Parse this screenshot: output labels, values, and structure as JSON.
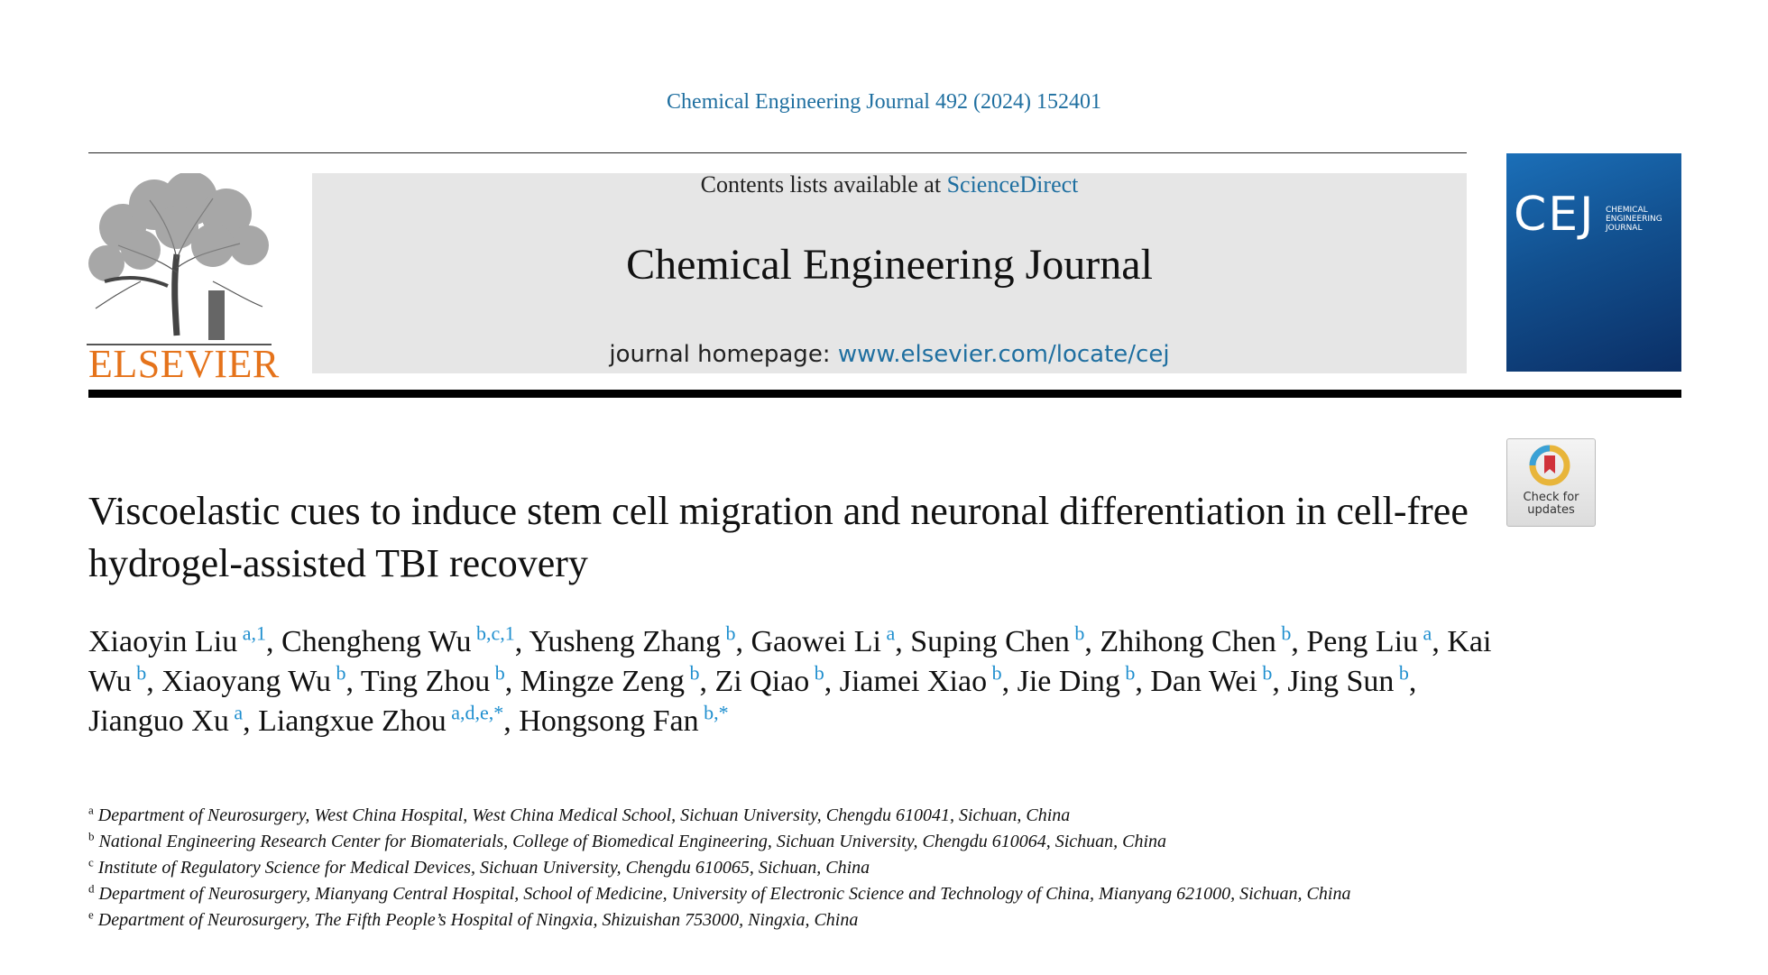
{
  "header": {
    "citation": "Chemical Engineering Journal 492 (2024) 152401",
    "contents_prefix": "Contents lists available at ",
    "contents_link": "ScienceDirect",
    "journal_title": "Chemical Engineering Journal",
    "homepage_prefix": "journal homepage: ",
    "homepage_link": "www.elsevier.com/locate/cej",
    "publisher": "ELSEVIER",
    "cover_abbr": "CEJ",
    "cover_name": "CHEMICAL ENGINEERING JOURNAL"
  },
  "badge": {
    "label_line1": "Check for",
    "label_line2": "updates"
  },
  "article": {
    "title": "Viscoelastic cues to induce stem cell migration and neuronal differentiation in cell-free hydrogel-assisted TBI recovery"
  },
  "authors": [
    {
      "name": "Xiaoyin Liu",
      "sup": "a,1"
    },
    {
      "name": "Chengheng Wu",
      "sup": "b,c,1"
    },
    {
      "name": "Yusheng Zhang",
      "sup": "b"
    },
    {
      "name": "Gaowei Li",
      "sup": "a"
    },
    {
      "name": "Suping Chen",
      "sup": "b"
    },
    {
      "name": "Zhihong Chen",
      "sup": "b"
    },
    {
      "name": "Peng Liu",
      "sup": "a"
    },
    {
      "name": "Kai Wu",
      "sup": "b"
    },
    {
      "name": "Xiaoyang Wu",
      "sup": "b"
    },
    {
      "name": "Ting Zhou",
      "sup": "b"
    },
    {
      "name": "Mingze Zeng",
      "sup": "b"
    },
    {
      "name": "Zi Qiao",
      "sup": "b"
    },
    {
      "name": "Jiamei Xiao",
      "sup": "b"
    },
    {
      "name": "Jie Ding",
      "sup": "b"
    },
    {
      "name": "Dan Wei",
      "sup": "b"
    },
    {
      "name": "Jing Sun",
      "sup": "b"
    },
    {
      "name": "Jianguo Xu",
      "sup": "a"
    },
    {
      "name": "Liangxue Zhou",
      "sup": "a,d,e,*"
    },
    {
      "name": "Hongsong Fan",
      "sup": "b,*"
    }
  ],
  "affiliations": [
    {
      "mark": "a",
      "text": "Department of Neurosurgery, West China Hospital, West China Medical School, Sichuan University, Chengdu 610041, Sichuan, China"
    },
    {
      "mark": "b",
      "text": "National Engineering Research Center for Biomaterials, College of Biomedical Engineering, Sichuan University, Chengdu 610064, Sichuan, China"
    },
    {
      "mark": "c",
      "text": "Institute of Regulatory Science for Medical Devices, Sichuan University, Chengdu 610065, Sichuan, China"
    },
    {
      "mark": "d",
      "text": "Department of Neurosurgery, Mianyang Central Hospital, School of Medicine, University of Electronic Science and Technology of China, Mianyang 621000, Sichuan, China"
    },
    {
      "mark": "e",
      "text": "Department of Neurosurgery, The Fifth People’s Hospital of Ningxia, Shizuishan 753000, Ningxia, China"
    }
  ],
  "colors": {
    "link": "#1f6fa0",
    "publisher": "#e5731b",
    "sup": "#1f8fcf"
  }
}
